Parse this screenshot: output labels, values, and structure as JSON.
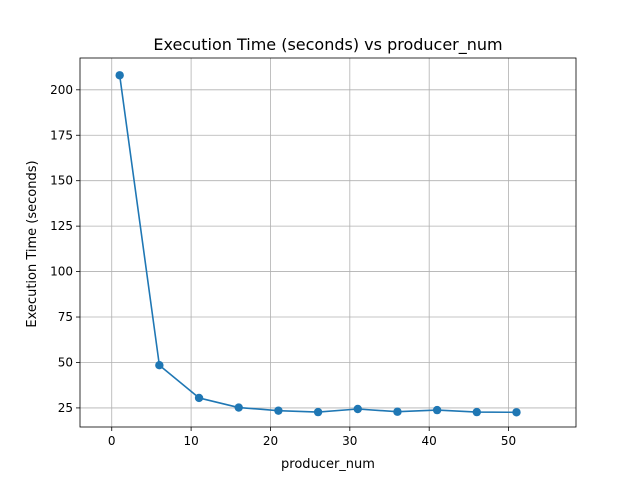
{
  "chart_data": {
    "type": "line",
    "title": "Execution Time (seconds) vs producer_num",
    "xlabel": "producer_num",
    "ylabel": "Execution Time (seconds)",
    "xlim": [
      -4.0,
      58.5
    ],
    "ylim": [
      14.5,
      217.5
    ],
    "xticks": [
      0,
      10,
      20,
      30,
      40,
      50
    ],
    "yticks": [
      25,
      50,
      75,
      100,
      125,
      150,
      175,
      200
    ],
    "grid": true,
    "series": [
      {
        "color": "#1f77b4",
        "marker": "circle",
        "x": [
          1,
          6,
          11,
          16,
          21,
          26,
          31,
          36,
          41,
          46,
          51
        ],
        "y": [
          208.0,
          48.5,
          30.5,
          25.2,
          23.5,
          22.7,
          24.4,
          22.9,
          23.8,
          22.7,
          22.6
        ]
      }
    ]
  }
}
